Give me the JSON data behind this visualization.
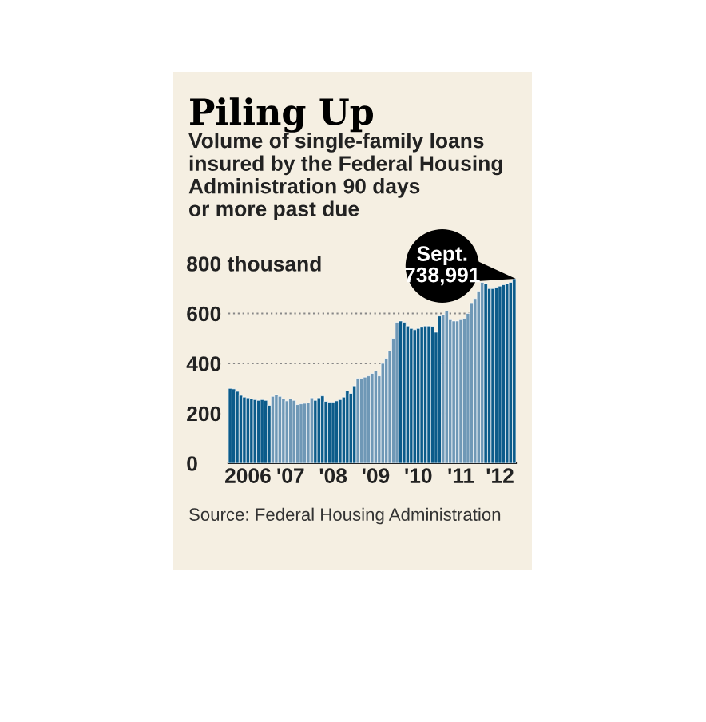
{
  "chart_data": {
    "type": "bar",
    "title": "Piling Up",
    "subtitle": "Volume of single-family loans\ninsured by the Federal Housing\nAdministration 90 days\nor more past due",
    "categories": [
      null,
      null,
      null,
      null,
      null,
      "2006",
      null,
      null,
      null,
      null,
      null,
      null,
      null,
      null,
      null,
      null,
      null,
      "'07",
      null,
      null,
      null,
      null,
      null,
      null,
      null,
      null,
      null,
      null,
      null,
      "'08",
      null,
      null,
      null,
      null,
      null,
      null,
      null,
      null,
      null,
      null,
      null,
      "'09",
      null,
      null,
      null,
      null,
      null,
      null,
      null,
      null,
      null,
      null,
      null,
      "'10",
      null,
      null,
      null,
      null,
      null,
      null,
      null,
      null,
      null,
      null,
      null,
      "'11",
      null,
      null,
      null,
      null,
      null,
      null,
      null,
      null,
      null,
      null,
      "'12",
      null,
      null,
      null,
      null
    ],
    "values": [
      300,
      298,
      288,
      272,
      265,
      262,
      258,
      255,
      252,
      255,
      252,
      232,
      268,
      275,
      268,
      258,
      250,
      258,
      252,
      235,
      238,
      240,
      242,
      262,
      252,
      262,
      270,
      248,
      245,
      245,
      250,
      255,
      265,
      290,
      280,
      310,
      340,
      340,
      345,
      350,
      360,
      370,
      350,
      400,
      420,
      450,
      500,
      565,
      570,
      565,
      550,
      540,
      535,
      540,
      545,
      550,
      550,
      548,
      525,
      590,
      595,
      610,
      575,
      570,
      570,
      575,
      580,
      600,
      640,
      660,
      690,
      725,
      720,
      700,
      700,
      705,
      710,
      715,
      720,
      725,
      739
    ],
    "colors": [
      "#0b5b8a",
      "#0b5b8a",
      "#0b5b8a",
      "#0b5b8a",
      "#0b5b8a",
      "#0b5b8a",
      "#0b5b8a",
      "#0b5b8a",
      "#0b5b8a",
      "#0b5b8a",
      "#0b5b8a",
      "#0b5b8a",
      "#6f98b6",
      "#6f98b6",
      "#6f98b6",
      "#6f98b6",
      "#6f98b6",
      "#6f98b6",
      "#6f98b6",
      "#6f98b6",
      "#6f98b6",
      "#6f98b6",
      "#6f98b6",
      "#6f98b6",
      "#0b5b8a",
      "#0b5b8a",
      "#0b5b8a",
      "#0b5b8a",
      "#0b5b8a",
      "#0b5b8a",
      "#0b5b8a",
      "#0b5b8a",
      "#0b5b8a",
      "#0b5b8a",
      "#0b5b8a",
      "#0b5b8a",
      "#6f98b6",
      "#6f98b6",
      "#6f98b6",
      "#6f98b6",
      "#6f98b6",
      "#6f98b6",
      "#6f98b6",
      "#6f98b6",
      "#6f98b6",
      "#6f98b6",
      "#6f98b6",
      "#6f98b6",
      "#0b5b8a",
      "#0b5b8a",
      "#0b5b8a",
      "#0b5b8a",
      "#0b5b8a",
      "#0b5b8a",
      "#0b5b8a",
      "#0b5b8a",
      "#0b5b8a",
      "#0b5b8a",
      "#0b5b8a",
      "#0b5b8a",
      "#6f98b6",
      "#6f98b6",
      "#6f98b6",
      "#6f98b6",
      "#6f98b6",
      "#6f98b6",
      "#6f98b6",
      "#6f98b6",
      "#6f98b6",
      "#6f98b6",
      "#6f98b6",
      "#6f98b6",
      "#0b5b8a",
      "#0b5b8a",
      "#0b5b8a",
      "#0b5b8a",
      "#0b5b8a",
      "#0b5b8a",
      "#0b5b8a",
      "#0b5b8a",
      "#0b5b8a"
    ],
    "ylim": [
      0,
      800
    ],
    "yticks": [
      0,
      200,
      400,
      600,
      {
        "value": 800,
        "label": "800 thousand"
      }
    ],
    "grid": "y",
    "annotations": [
      "Sept.\n738,991",
      "Source: Federal Housing Administration"
    ]
  }
}
